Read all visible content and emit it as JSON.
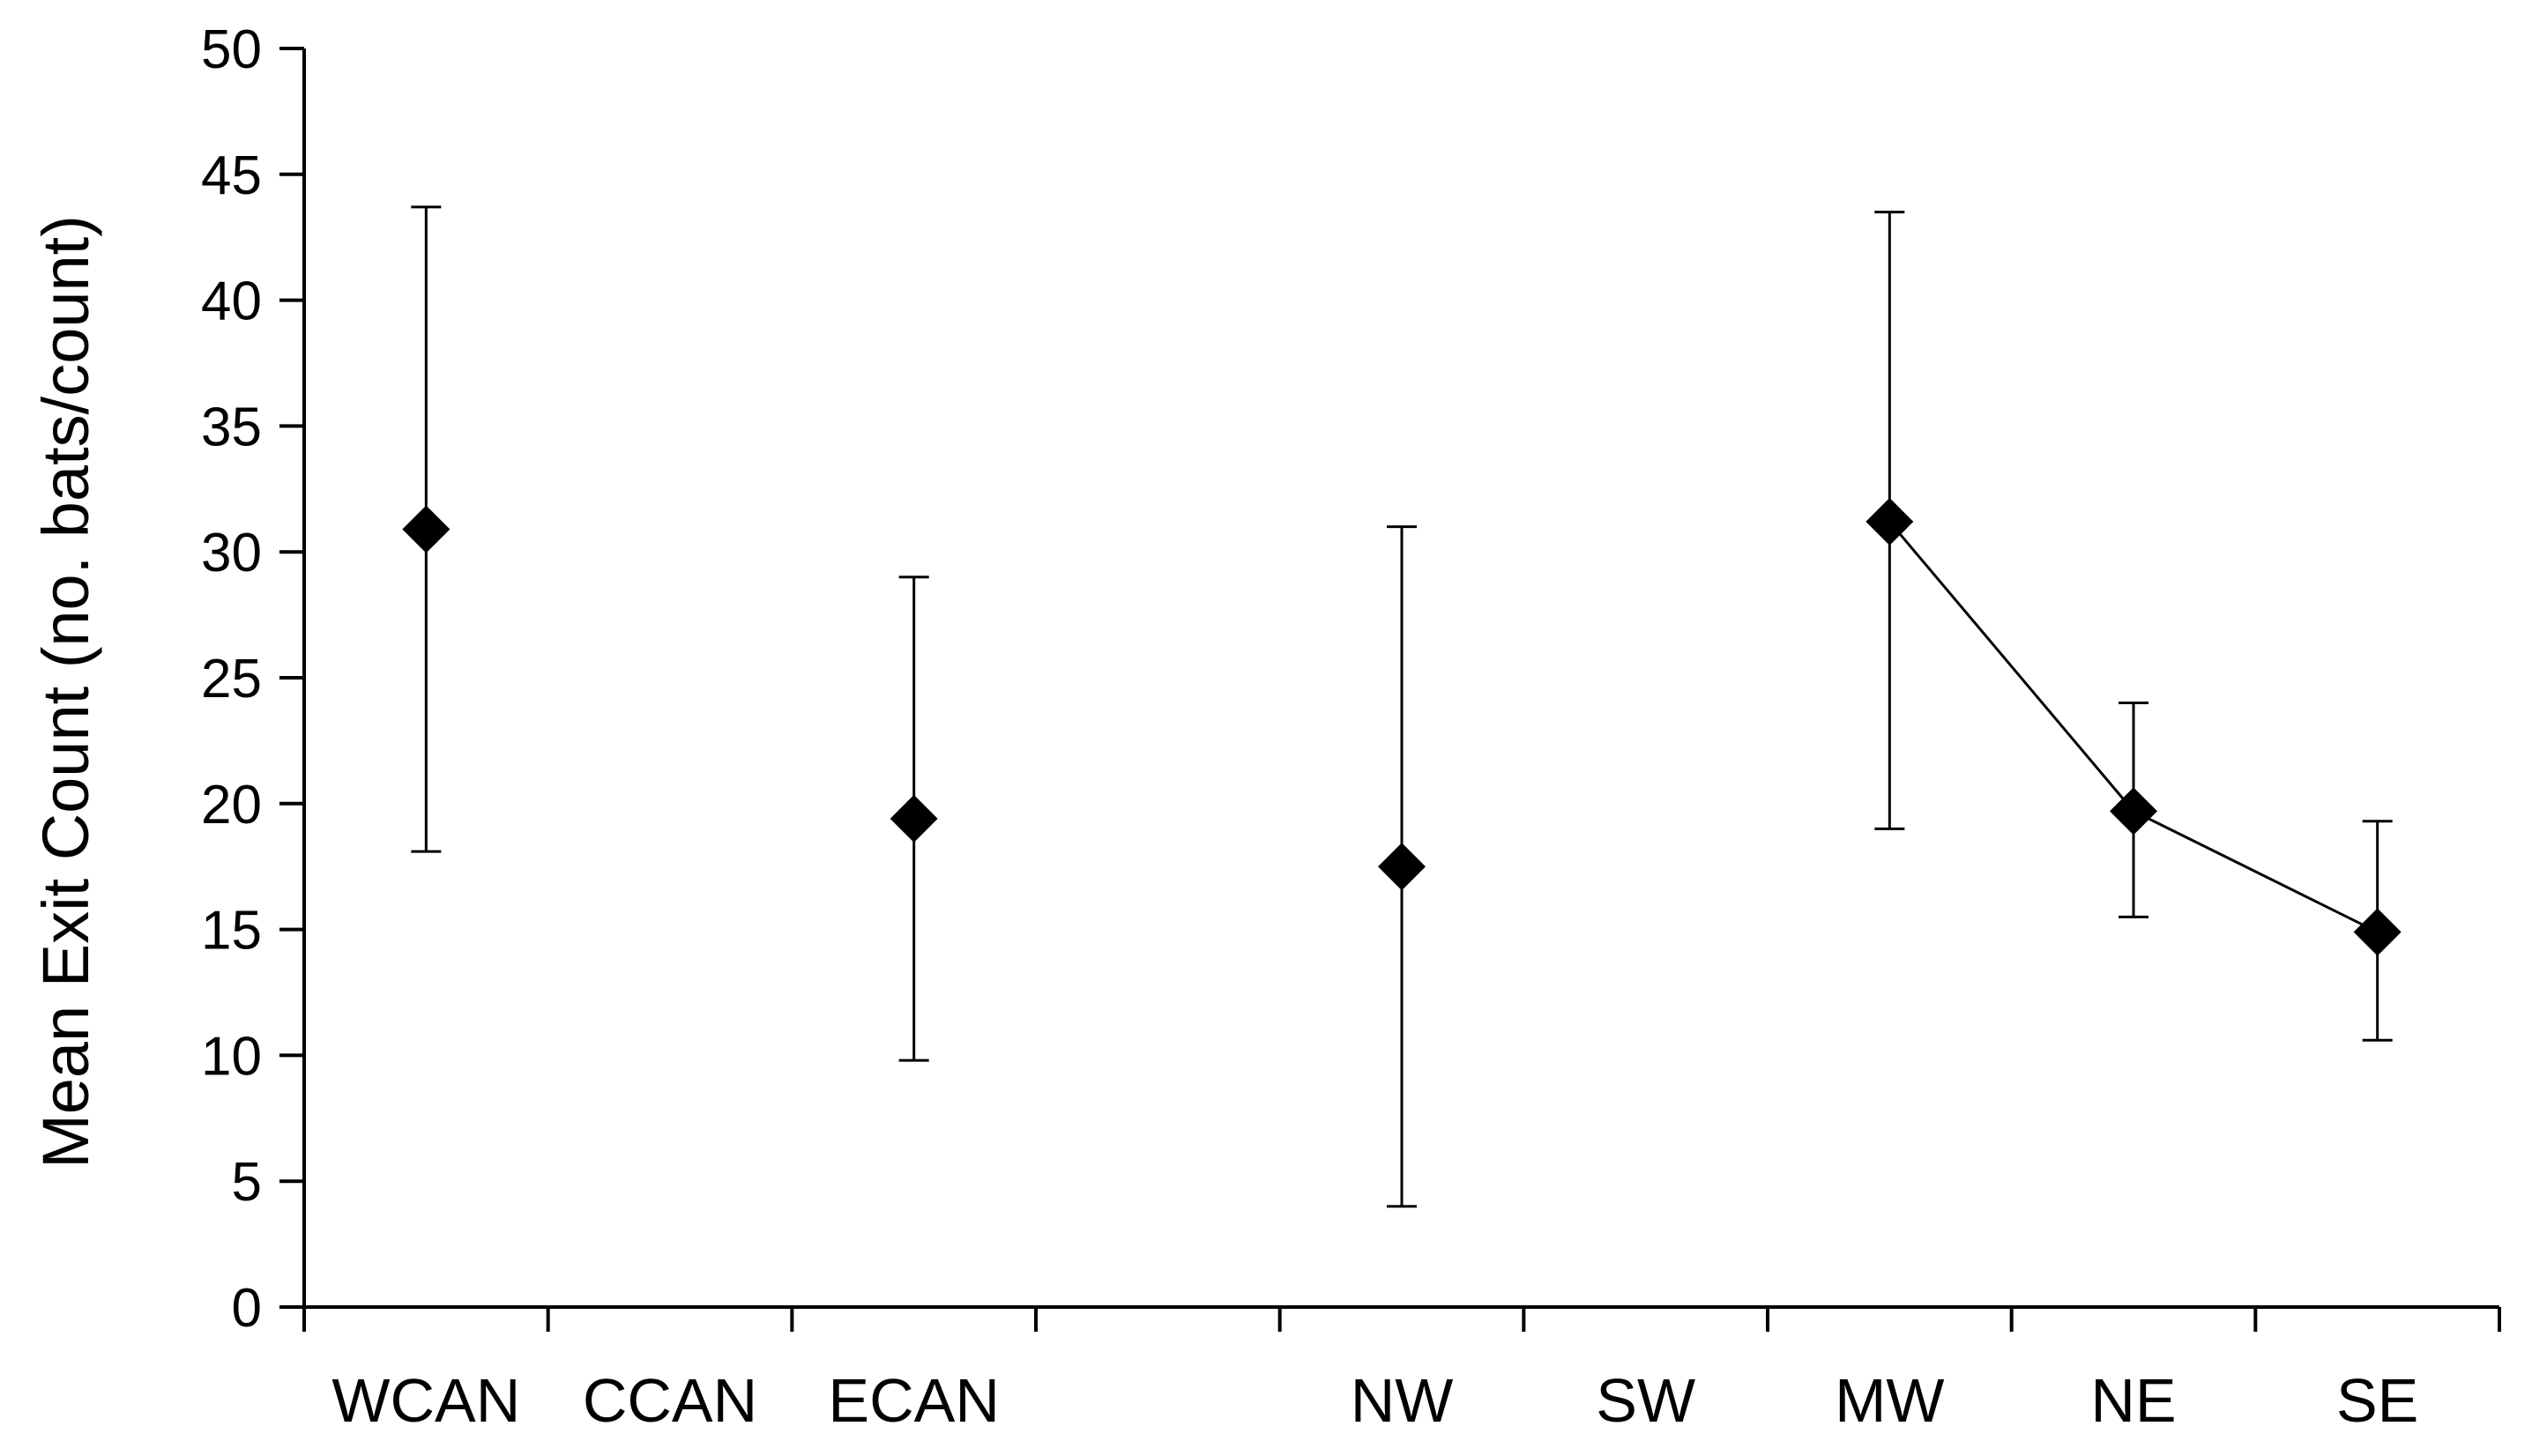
{
  "chart_data": {
    "type": "scatter",
    "title": "",
    "xlabel": "",
    "ylabel": "Mean Exit Count (no. bats/count)",
    "ylim": [
      0,
      50
    ],
    "yticks": [
      0,
      5,
      10,
      15,
      20,
      25,
      30,
      35,
      40,
      45,
      50
    ],
    "grid": false,
    "legend": "none",
    "slots": [
      "WCAN",
      "CCAN",
      "ECAN",
      "",
      "NW",
      "SW",
      "MW",
      "NE",
      "SE"
    ],
    "categories": [
      "WCAN",
      "CCAN",
      "ECAN",
      "NW",
      "SW",
      "MW",
      "NE",
      "SE"
    ],
    "points": [
      {
        "category": "WCAN",
        "mean": 30.9,
        "lower": 18.1,
        "upper": 43.7
      },
      {
        "category": "ECAN",
        "mean": 19.4,
        "lower": 9.8,
        "upper": 29.0
      },
      {
        "category": "NW",
        "mean": 17.5,
        "lower": 4.0,
        "upper": 31.0
      },
      {
        "category": "MW",
        "mean": 31.2,
        "lower": 19.0,
        "upper": 43.5
      },
      {
        "category": "NE",
        "mean": 19.7,
        "lower": 15.5,
        "upper": 24.0
      },
      {
        "category": "SE",
        "mean": 14.9,
        "lower": 10.6,
        "upper": 19.3
      }
    ],
    "connected": [
      "MW",
      "NE",
      "SE"
    ],
    "marker": "diamond",
    "color": "#000000"
  }
}
